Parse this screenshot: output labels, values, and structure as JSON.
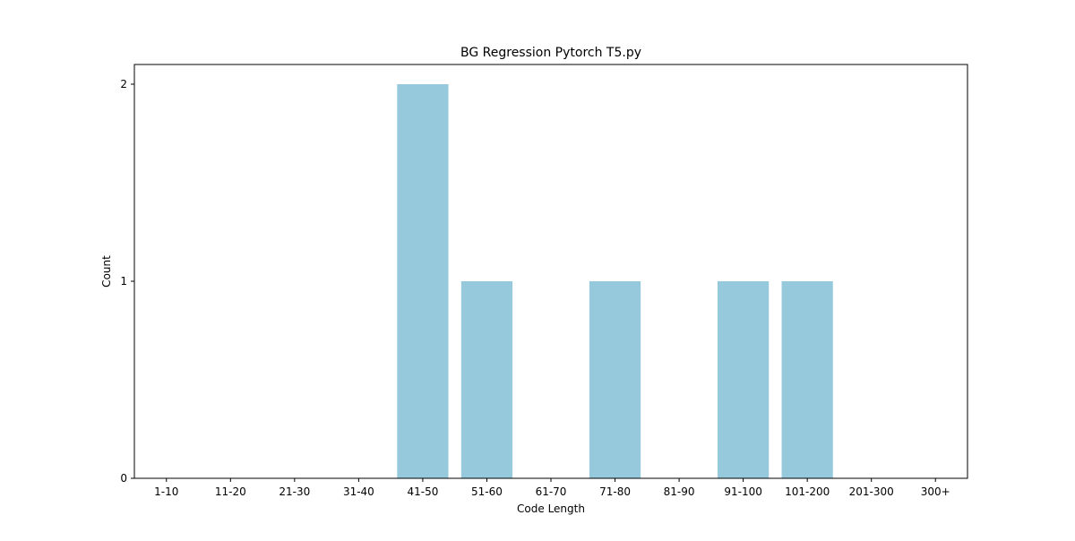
{
  "chart_data": {
    "type": "bar",
    "title": "BG Regression Pytorch T5.py",
    "xlabel": "Code Length",
    "ylabel": "Count",
    "categories": [
      "1-10",
      "11-20",
      "21-30",
      "31-40",
      "41-50",
      "51-60",
      "61-70",
      "71-80",
      "81-90",
      "91-100",
      "101-200",
      "201-300",
      "300+"
    ],
    "values": [
      0,
      0,
      0,
      0,
      2,
      1,
      0,
      1,
      0,
      1,
      1,
      0,
      0
    ],
    "ylim": [
      0,
      2.1
    ],
    "yticks": [
      "0",
      "1",
      "2"
    ],
    "bar_color": "#96c9dc",
    "grid": false,
    "legend": "none"
  }
}
